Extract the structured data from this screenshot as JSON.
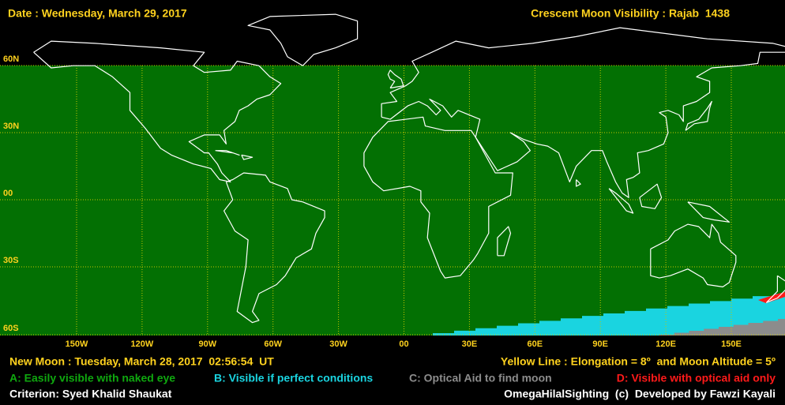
{
  "header": {
    "date": "Date : Wednesday, March 29, 2017",
    "title": "Crescent Moon Visibility : Rajab  1438"
  },
  "map": {
    "lat_labels": [
      "60N",
      "30N",
      "00",
      "30S",
      "60S"
    ],
    "lon_labels": [
      "150W",
      "120W",
      "90W",
      "60W",
      "30W",
      "00",
      "30E",
      "60E",
      "90E",
      "120E",
      "150E"
    ]
  },
  "footer": {
    "new_moon": "New Moon : Tuesday, March 28, 2017  02:56:54  UT",
    "yellow_line": "Yellow Line : Elongation = 8º  and Moon Altitude = 5º",
    "legend": [
      "A: Easily visible with naked eye",
      "B: Visible if perfect conditions",
      "C: Optical Aid to find moon",
      "D: Visible with optical aid only"
    ],
    "criterion": "Criterion: Syed Khalid Shaukat",
    "credit": "OmegaHilalSighting  (c)  Developed by Fawzi Kayali"
  }
}
